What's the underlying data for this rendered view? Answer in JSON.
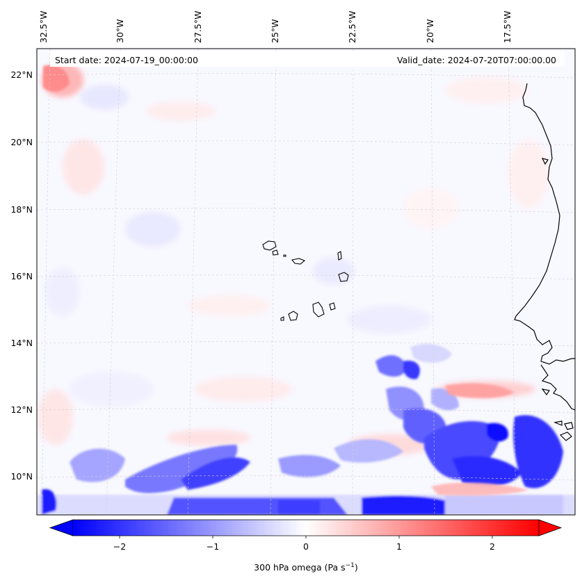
{
  "map": {
    "start_label": "Start date: 2024-07-19_00:00:00",
    "valid_label": "Valid_date: 2024-07-20T07:00:00.00",
    "lon_labels": [
      "32.5°W",
      "30°W",
      "27.5°W",
      "25°W",
      "22.5°W",
      "20°W",
      "17.5°W"
    ],
    "lat_labels": [
      "22°N",
      "20°N",
      "18°N",
      "16°N",
      "14°N",
      "12°N",
      "10°N"
    ],
    "extent": {
      "lon_min": -33.0,
      "lon_max": -15.5,
      "lat_min": 8.8,
      "lat_max": 22.8
    },
    "variable": "300 hPa omega",
    "units_label": "(Pa s",
    "units_sup": "−1",
    "units_close": ")"
  },
  "colorbar": {
    "ticks": [
      {
        "value": -2,
        "label": "−2"
      },
      {
        "value": -1,
        "label": "−1"
      },
      {
        "value": 0,
        "label": "0"
      },
      {
        "value": 1,
        "label": "1"
      },
      {
        "value": 2,
        "label": "2"
      }
    ],
    "vmin": -2.5,
    "vmax": 2.5,
    "colors": {
      "neg": "#0000ff",
      "mid": "#ffffff",
      "pos": "#ff0000"
    }
  }
}
